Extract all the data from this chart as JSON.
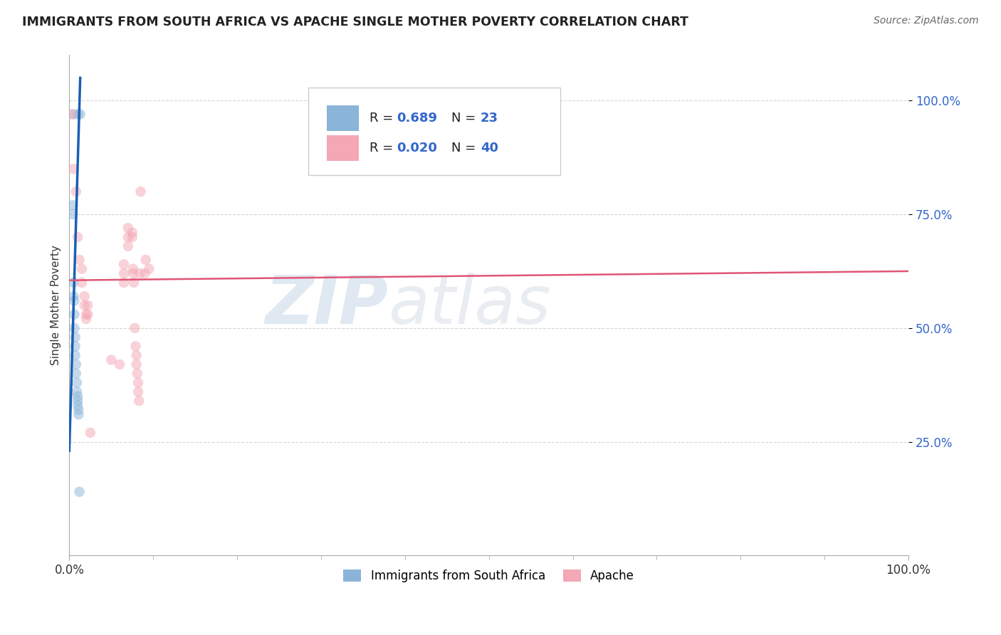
{
  "title": "IMMIGRANTS FROM SOUTH AFRICA VS APACHE SINGLE MOTHER POVERTY CORRELATION CHART",
  "source": "Source: ZipAtlas.com",
  "ylabel": "Single Mother Poverty",
  "watermark_zip": "ZIP",
  "watermark_atlas": "atlas",
  "legend_blue_r": "0.689",
  "legend_blue_n": "23",
  "legend_pink_r": "0.020",
  "legend_pink_n": "40",
  "legend_label_blue": "Immigrants from South Africa",
  "legend_label_pink": "Apache",
  "ytick_labels": [
    "25.0%",
    "50.0%",
    "75.0%",
    "100.0%"
  ],
  "ytick_values": [
    0.25,
    0.5,
    0.75,
    1.0
  ],
  "xtick_labels": [
    "0.0%",
    "100.0%"
  ],
  "xtick_values": [
    0.0,
    1.0
  ],
  "blue_points": [
    [
      0.005,
      0.97
    ],
    [
      0.01,
      0.97
    ],
    [
      0.013,
      0.97
    ],
    [
      0.004,
      0.77
    ],
    [
      0.004,
      0.75
    ],
    [
      0.005,
      0.6
    ],
    [
      0.005,
      0.57
    ],
    [
      0.006,
      0.56
    ],
    [
      0.006,
      0.53
    ],
    [
      0.006,
      0.5
    ],
    [
      0.007,
      0.48
    ],
    [
      0.007,
      0.46
    ],
    [
      0.007,
      0.44
    ],
    [
      0.008,
      0.42
    ],
    [
      0.008,
      0.4
    ],
    [
      0.009,
      0.38
    ],
    [
      0.009,
      0.36
    ],
    [
      0.01,
      0.35
    ],
    [
      0.01,
      0.34
    ],
    [
      0.01,
      0.33
    ],
    [
      0.011,
      0.32
    ],
    [
      0.011,
      0.31
    ],
    [
      0.012,
      0.14
    ]
  ],
  "pink_points": [
    [
      0.003,
      0.97
    ],
    [
      0.005,
      0.85
    ],
    [
      0.008,
      0.8
    ],
    [
      0.01,
      0.7
    ],
    [
      0.012,
      0.65
    ],
    [
      0.015,
      0.63
    ],
    [
      0.015,
      0.6
    ],
    [
      0.018,
      0.57
    ],
    [
      0.018,
      0.55
    ],
    [
      0.02,
      0.53
    ],
    [
      0.02,
      0.52
    ],
    [
      0.022,
      0.55
    ],
    [
      0.022,
      0.53
    ],
    [
      0.025,
      0.27
    ],
    [
      0.05,
      0.43
    ],
    [
      0.06,
      0.42
    ],
    [
      0.065,
      0.6
    ],
    [
      0.065,
      0.62
    ],
    [
      0.065,
      0.64
    ],
    [
      0.07,
      0.68
    ],
    [
      0.07,
      0.7
    ],
    [
      0.07,
      0.72
    ],
    [
      0.075,
      0.71
    ],
    [
      0.075,
      0.7
    ],
    [
      0.076,
      0.63
    ],
    [
      0.076,
      0.62
    ],
    [
      0.077,
      0.6
    ],
    [
      0.078,
      0.5
    ],
    [
      0.079,
      0.46
    ],
    [
      0.08,
      0.44
    ],
    [
      0.08,
      0.42
    ],
    [
      0.081,
      0.4
    ],
    [
      0.082,
      0.38
    ],
    [
      0.082,
      0.36
    ],
    [
      0.083,
      0.34
    ],
    [
      0.084,
      0.62
    ],
    [
      0.085,
      0.8
    ],
    [
      0.09,
      0.62
    ],
    [
      0.091,
      0.65
    ],
    [
      0.095,
      0.63
    ]
  ],
  "blue_line_x": [
    0.0,
    0.013
  ],
  "blue_line_y": [
    0.23,
    1.05
  ],
  "pink_line_x": [
    0.0,
    1.0
  ],
  "pink_line_y": [
    0.605,
    0.625
  ],
  "xlim": [
    0.0,
    1.0
  ],
  "ylim": [
    0.0,
    1.1
  ],
  "bg_color": "#ffffff",
  "scatter_alpha": 0.5,
  "blue_color": "#8ab4d8",
  "pink_color": "#f4a7b5",
  "blue_line_color": "#1a5fb4",
  "pink_line_color": "#e05577",
  "grid_color": "#cccccc",
  "title_color": "#222222",
  "source_color": "#666666",
  "tick_color": "#3366cc"
}
